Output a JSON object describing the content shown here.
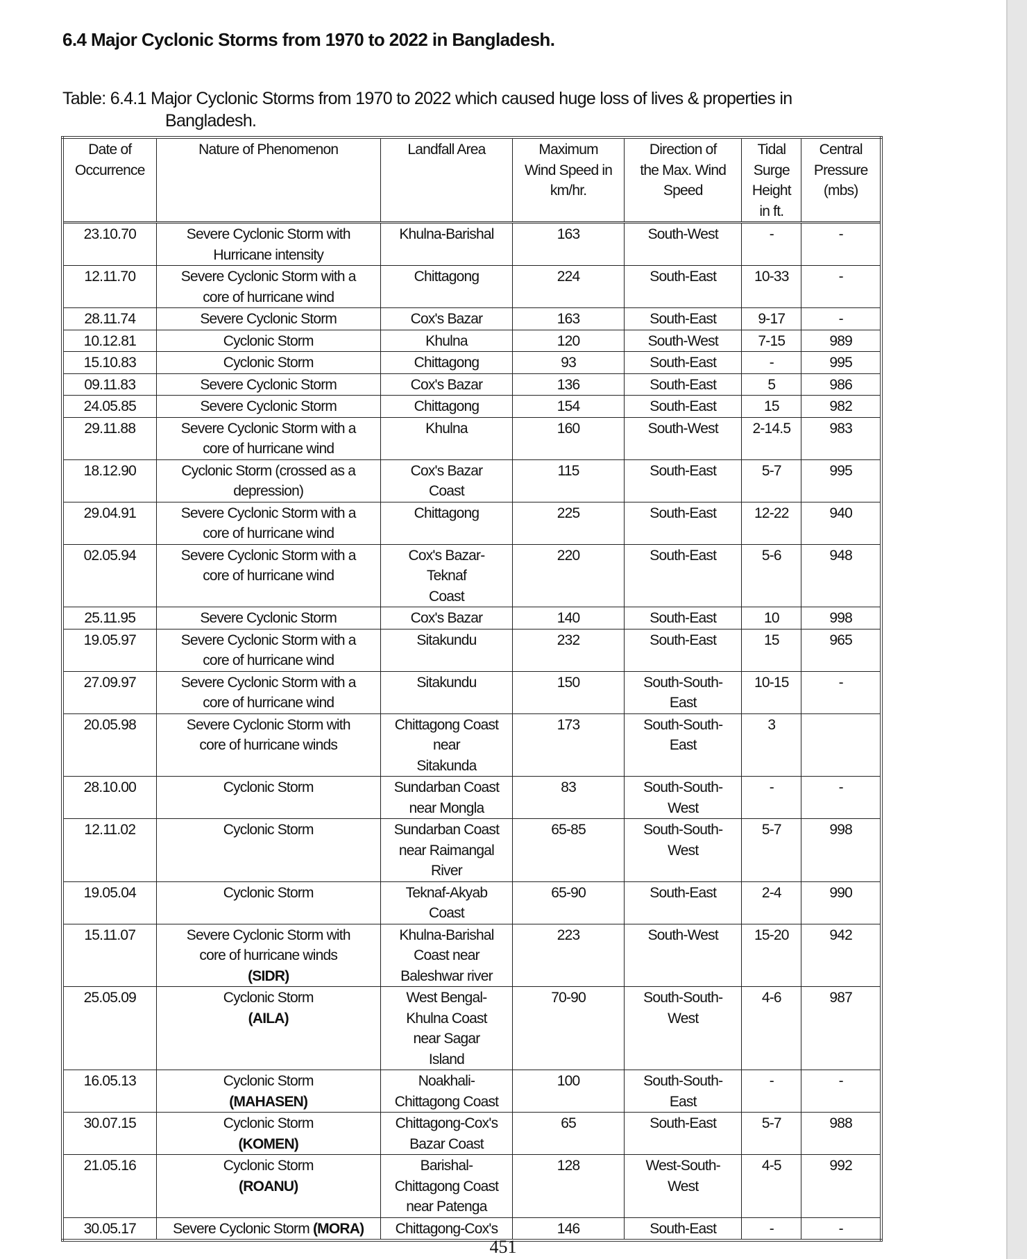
{
  "heading": "6.4 Major Cyclonic Storms from 1970 to 2022 in Bangladesh.",
  "caption": {
    "line1": "Table: 6.4.1 Major Cyclonic Storms from 1970 to 2022 which caused huge loss of lives & properties in",
    "line2": "Bangladesh."
  },
  "columns": [
    "Date of\nOccurrence",
    "Nature of Phenomenon",
    "Landfall Area",
    "Maximum\nWind Speed in\nkm/hr.",
    "Direction of\nthe Max. Wind\nSpeed",
    "Tidal\nSurge\nHeight\nin ft.",
    "Central\nPressure\n(mbs)"
  ],
  "rows": [
    {
      "date": "23.10.70",
      "nature": "Severe Cyclonic Storm with\nHurricane intensity",
      "name": "",
      "landfall": "Khulna-Barishal",
      "wind": "163",
      "direction": "South-West",
      "surge": "-",
      "pressure": "-"
    },
    {
      "date": "12.11.70",
      "nature": "Severe Cyclonic Storm with a\ncore of hurricane wind",
      "name": "",
      "landfall": "Chittagong",
      "wind": "224",
      "direction": "South-East",
      "surge": "10-33",
      "pressure": "-"
    },
    {
      "date": "28.11.74",
      "nature": "Severe Cyclonic Storm",
      "name": "",
      "landfall": "Cox's Bazar",
      "wind": "163",
      "direction": "South-East",
      "surge": "9-17",
      "pressure": "-"
    },
    {
      "date": "10.12.81",
      "nature": "Cyclonic Storm",
      "name": "",
      "landfall": "Khulna",
      "wind": "120",
      "direction": "South-West",
      "surge": "7-15",
      "pressure": "989"
    },
    {
      "date": "15.10.83",
      "nature": "Cyclonic Storm",
      "name": "",
      "landfall": "Chittagong",
      "wind": "93",
      "direction": "South-East",
      "surge": "-",
      "pressure": "995"
    },
    {
      "date": "09.11.83",
      "nature": "Severe Cyclonic Storm",
      "name": "",
      "landfall": "Cox's Bazar",
      "wind": "136",
      "direction": "South-East",
      "surge": "5",
      "pressure": "986"
    },
    {
      "date": "24.05.85",
      "nature": "Severe Cyclonic Storm",
      "name": "",
      "landfall": "Chittagong",
      "wind": "154",
      "direction": "South-East",
      "surge": "15",
      "pressure": "982"
    },
    {
      "date": "29.11.88",
      "nature": "Severe Cyclonic Storm with a\ncore of hurricane wind",
      "name": "",
      "landfall": "Khulna",
      "wind": "160",
      "direction": "South-West",
      "surge": "2-14.5",
      "pressure": "983"
    },
    {
      "date": "18.12.90",
      "nature": "Cyclonic Storm (crossed as a\ndepression)",
      "name": "",
      "landfall": "Cox's Bazar\nCoast",
      "wind": "115",
      "direction": "South-East",
      "surge": "5-7",
      "pressure": "995"
    },
    {
      "date": "29.04.91",
      "nature": "Severe Cyclonic Storm with a\ncore of hurricane wind",
      "name": "",
      "landfall": "Chittagong",
      "wind": "225",
      "direction": "South-East",
      "surge": "12-22",
      "pressure": "940"
    },
    {
      "date": "02.05.94",
      "nature": "Severe Cyclonic Storm with a\ncore of hurricane wind",
      "name": "",
      "landfall": "Cox's Bazar-\nTeknaf\nCoast",
      "wind": "220",
      "direction": "South-East",
      "surge": "5-6",
      "pressure": "948"
    },
    {
      "date": "25.11.95",
      "nature": "Severe Cyclonic Storm",
      "name": "",
      "landfall": "Cox's Bazar",
      "wind": "140",
      "direction": "South-East",
      "surge": "10",
      "pressure": "998"
    },
    {
      "date": "19.05.97",
      "nature": "Severe Cyclonic Storm with a\ncore of hurricane wind",
      "name": "",
      "landfall": "Sitakundu",
      "wind": "232",
      "direction": "South-East",
      "surge": "15",
      "pressure": "965"
    },
    {
      "date": "27.09.97",
      "nature": "Severe Cyclonic Storm with a\ncore of hurricane wind",
      "name": "",
      "landfall": "Sitakundu",
      "wind": "150",
      "direction": "South-South-\nEast",
      "surge": "10-15",
      "pressure": "-"
    },
    {
      "date": "20.05.98",
      "nature": "Severe Cyclonic Storm with\ncore of hurricane winds",
      "name": "",
      "landfall": "Chittagong Coast\nnear\nSitakunda",
      "wind": "173",
      "direction": "South-South-\nEast",
      "surge": "3",
      "pressure": ""
    },
    {
      "date": "28.10.00",
      "nature": "Cyclonic Storm",
      "name": "",
      "landfall": "Sundarban Coast\nnear Mongla",
      "wind": "83",
      "direction": "South-South-\nWest",
      "surge": "-",
      "pressure": "-"
    },
    {
      "date": "12.11.02",
      "nature": "Cyclonic Storm",
      "name": "",
      "landfall": "Sundarban Coast\nnear Raimangal\nRiver",
      "wind": "65-85",
      "direction": "South-South-\nWest",
      "surge": "5-7",
      "pressure": "998"
    },
    {
      "date": "19.05.04",
      "nature": "Cyclonic Storm",
      "name": "",
      "landfall": "Teknaf-Akyab\nCoast",
      "wind": "65-90",
      "direction": "South-East",
      "surge": "2-4",
      "pressure": "990"
    },
    {
      "date": "15.11.07",
      "nature": "Severe Cyclonic Storm with\ncore of hurricane winds",
      "name": "(SIDR)",
      "landfall": "Khulna-Barishal\nCoast near\nBaleshwar river",
      "wind": "223",
      "direction": "South-West",
      "surge": "15-20",
      "pressure": "942"
    },
    {
      "date": "25.05.09",
      "nature": "Cyclonic Storm",
      "name": "(AILA)",
      "landfall": "West Bengal-\nKhulna Coast\nnear Sagar\nIsland",
      "wind": "70-90",
      "direction": "South-South-\nWest",
      "surge": "4-6",
      "pressure": "987"
    },
    {
      "date": "16.05.13",
      "nature": "Cyclonic Storm",
      "name": "(MAHASEN)",
      "landfall": "Noakhali-\nChittagong Coast",
      "wind": "100",
      "direction": "South-South-\nEast",
      "surge": "-",
      "pressure": "-"
    },
    {
      "date": "30.07.15",
      "nature": "Cyclonic Storm",
      "name": "(KOMEN)",
      "landfall": "Chittagong-Cox's\nBazar Coast",
      "wind": "65",
      "direction": "South-East",
      "surge": "5-7",
      "pressure": "988"
    },
    {
      "date": "21.05.16",
      "nature": "Cyclonic Storm",
      "name": "(ROANU)",
      "landfall": "Barishal-\nChittagong Coast\nnear Patenga",
      "wind": "128",
      "direction": "West-South-\nWest",
      "surge": "4-5",
      "pressure": "992"
    },
    {
      "date": "30.05.17",
      "nature": "Severe Cyclonic Storm ",
      "name": "(MORA)",
      "landfall": "Chittagong-Cox's",
      "wind": "146",
      "direction": "South-East",
      "surge": "-",
      "pressure": "-"
    }
  ],
  "page_number": "451"
}
